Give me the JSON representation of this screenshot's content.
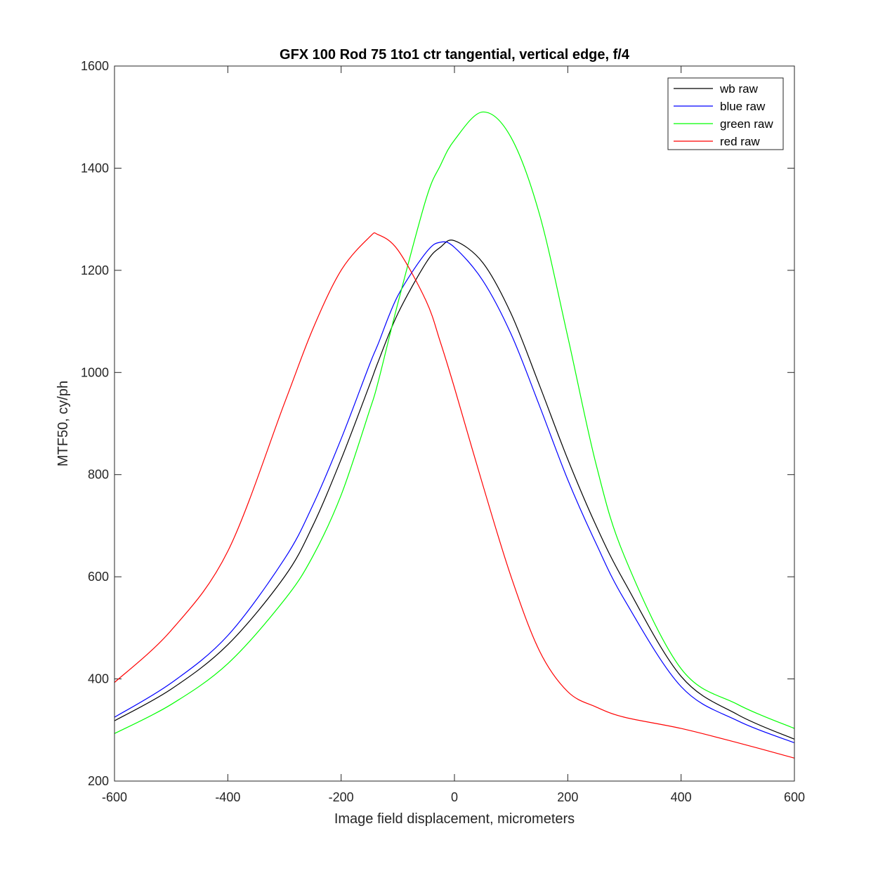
{
  "chart_data": {
    "type": "line",
    "title": "GFX 100 Rod 75 1to1 ctr  tangential, vertical edge, f/4",
    "xlabel": "Image field displacement, micrometers",
    "ylabel": "MTF50, cy/ph",
    "xlim": [
      -600,
      600
    ],
    "ylim": [
      200,
      1600
    ],
    "xticks": [
      -600,
      -400,
      -200,
      0,
      200,
      400,
      600
    ],
    "yticks": [
      200,
      400,
      600,
      800,
      1000,
      1200,
      1400,
      1600
    ],
    "grid": false,
    "legend_position": "top-right",
    "x": [
      -600,
      -500,
      -400,
      -300,
      -250,
      -200,
      -150,
      -135,
      -100,
      -50,
      -25,
      0,
      50,
      100,
      150,
      200,
      250,
      300,
      400,
      500,
      600
    ],
    "series": [
      {
        "name": "wb raw",
        "color": "#000000",
        "values": [
          318,
          380,
          467,
          600,
          700,
          830,
          975,
          1020,
          1115,
          1215,
          1245,
          1258,
          1215,
          1115,
          975,
          830,
          700,
          590,
          405,
          330,
          282
        ]
      },
      {
        "name": "blue raw",
        "color": "#0000ff",
        "values": [
          325,
          392,
          485,
          635,
          740,
          870,
          1015,
          1055,
          1150,
          1235,
          1255,
          1245,
          1180,
          1075,
          935,
          790,
          665,
          555,
          385,
          318,
          275
        ]
      },
      {
        "name": "green raw",
        "color": "#00ff00",
        "values": [
          293,
          350,
          430,
          555,
          640,
          760,
          925,
          980,
          1135,
          1340,
          1405,
          1455,
          1510,
          1460,
          1310,
          1070,
          820,
          640,
          420,
          350,
          303
        ]
      },
      {
        "name": "red raw",
        "color": "#ff0000",
        "values": [
          393,
          495,
          650,
          940,
          1085,
          1200,
          1265,
          1270,
          1240,
          1140,
          1060,
          970,
          780,
          600,
          455,
          375,
          345,
          325,
          303,
          275,
          245
        ]
      }
    ]
  }
}
